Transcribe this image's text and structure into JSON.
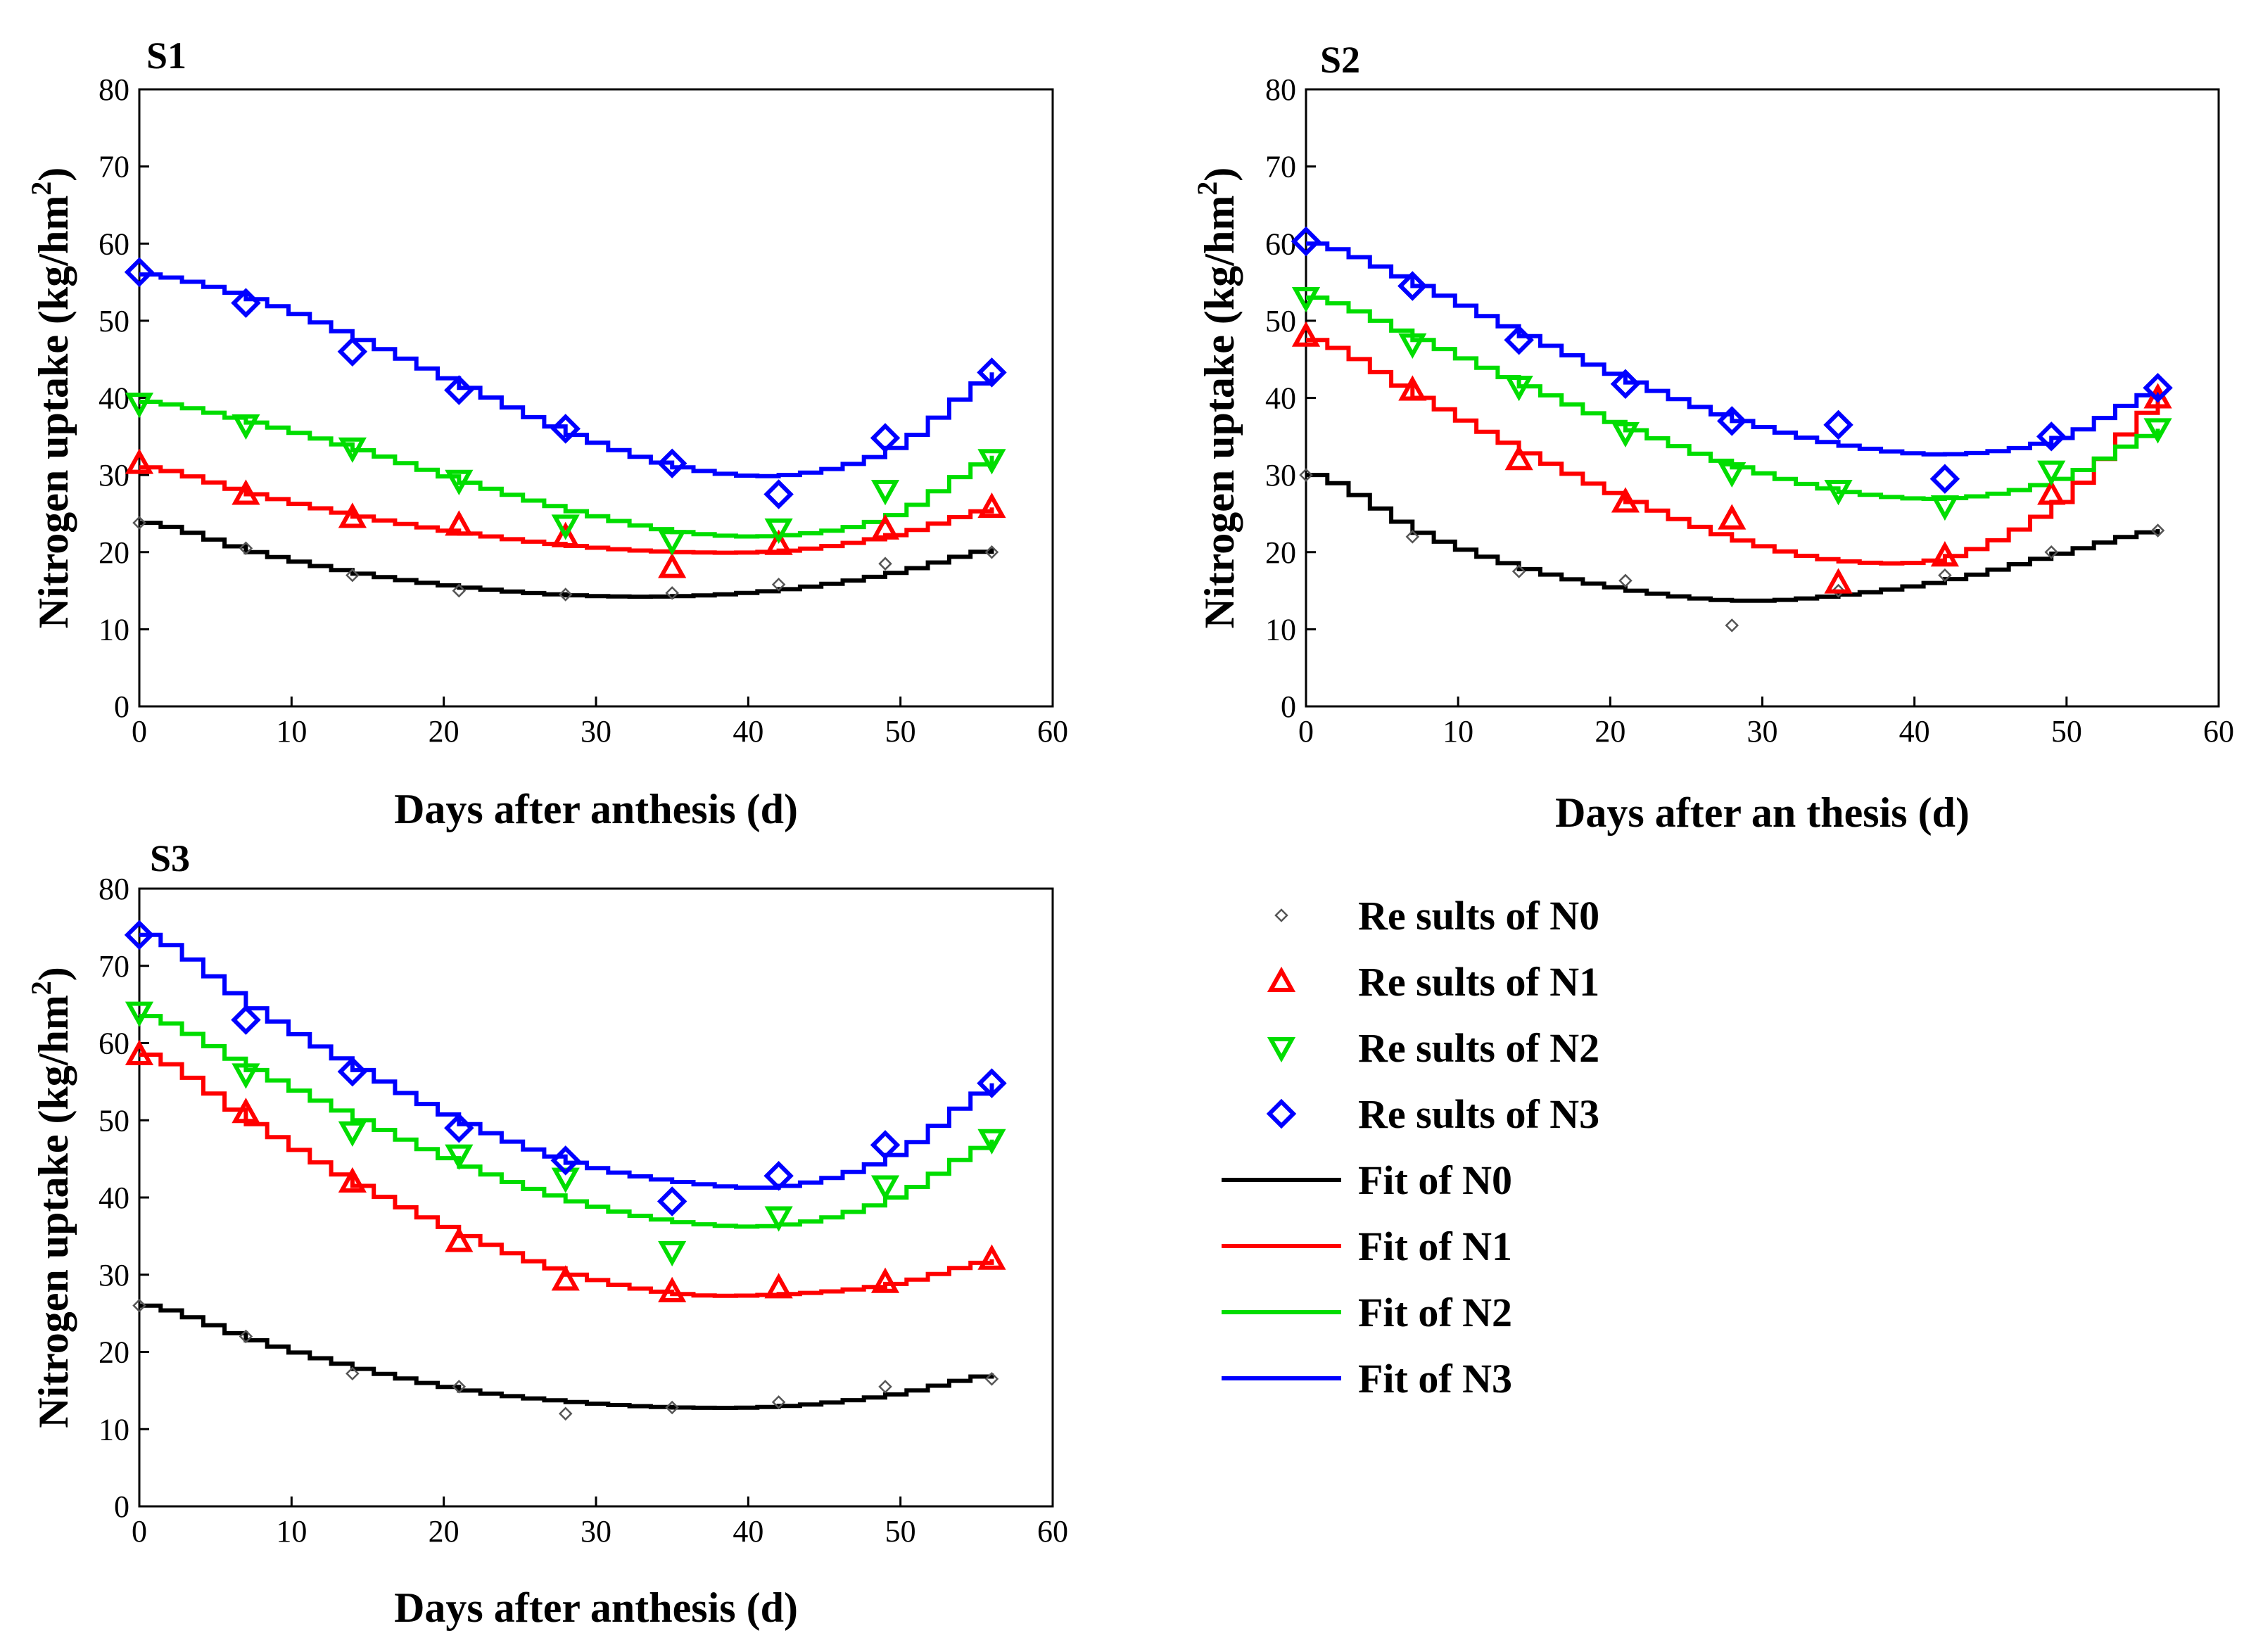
{
  "legend": {
    "entries": [
      {
        "label": "Re sults of  N0",
        "series": "N0",
        "kind": "marker",
        "color": "#555555",
        "marker": "small-diamond"
      },
      {
        "label": "Re sults of  N1",
        "series": "N1",
        "kind": "marker",
        "color": "#ff0000",
        "marker": "triangle-up"
      },
      {
        "label": "Re sults of  N2",
        "series": "N2",
        "kind": "marker",
        "color": "#00dd00",
        "marker": "triangle-down"
      },
      {
        "label": "Re sults of  N3",
        "series": "N3",
        "kind": "marker",
        "color": "#0000ff",
        "marker": "diamond"
      },
      {
        "label": "Fit of  N0",
        "series": "N0",
        "kind": "line",
        "color": "#000000"
      },
      {
        "label": "Fit of  N1",
        "series": "N1",
        "kind": "line",
        "color": "#ff0000"
      },
      {
        "label": "Fit of  N2",
        "series": "N2",
        "kind": "line",
        "color": "#00dd00"
      },
      {
        "label": "Fit of  N3",
        "series": "N3",
        "kind": "line",
        "color": "#0000ff"
      }
    ]
  },
  "chart_data": [
    {
      "type": "scatter",
      "title": "S1",
      "xlabel": "Days after anthesis (d)",
      "ylabel": "Nitrogen uptake  (kg/hm",
      "ylabel_sup": "2",
      "ylabel_close": ")",
      "xlim": [
        0,
        60
      ],
      "ylim": [
        0,
        80
      ],
      "xticks": [
        0,
        10,
        20,
        30,
        40,
        50,
        60
      ],
      "yticks": [
        0,
        10,
        20,
        30,
        40,
        50,
        60,
        70,
        80
      ],
      "x": [
        0,
        7,
        14,
        21,
        28,
        35,
        42,
        49,
        56
      ],
      "series": [
        {
          "name": "N0",
          "color": "#555555",
          "marker": "small-diamond",
          "values": [
            23.8,
            20.5,
            17.0,
            15.0,
            14.5,
            14.7,
            15.8,
            18.5,
            20.0
          ],
          "fit": [
            23.8,
            20.0,
            17.2,
            15.4,
            14.4,
            14.3,
            15.2,
            17.3,
            20.5
          ]
        },
        {
          "name": "N1",
          "color": "#ff0000",
          "marker": "triangle-up",
          "values": [
            31.5,
            27.5,
            24.5,
            23.5,
            22.0,
            18.0,
            21.0,
            23.0,
            25.8
          ],
          "fit": [
            31.0,
            27.5,
            24.6,
            22.4,
            20.8,
            20.0,
            20.2,
            22.2,
            25.8
          ]
        },
        {
          "name": "N2",
          "color": "#00dd00",
          "marker": "triangle-down",
          "values": [
            39.3,
            36.5,
            33.5,
            29.3,
            23.5,
            21.5,
            23.0,
            28.0,
            32.0
          ],
          "fit": [
            39.5,
            36.8,
            33.2,
            29.0,
            25.3,
            22.6,
            22.2,
            24.8,
            32.5
          ]
        },
        {
          "name": "N3",
          "color": "#0000ff",
          "marker": "diamond",
          "values": [
            56.3,
            52.3,
            46.0,
            41.0,
            36.0,
            31.5,
            27.5,
            34.8,
            43.3
          ],
          "fit": [
            56.0,
            52.8,
            47.5,
            41.3,
            35.2,
            31.0,
            30.0,
            33.5,
            43.3
          ]
        }
      ]
    },
    {
      "type": "scatter",
      "title": "S2",
      "xlabel": "Days after an thesis  (d)",
      "ylabel": "Nitrogen uptake  (kg/hm",
      "ylabel_sup": "2",
      "ylabel_close": ")",
      "xlim": [
        0,
        60
      ],
      "ylim": [
        0,
        80
      ],
      "xticks": [
        0,
        10,
        20,
        30,
        40,
        50,
        60
      ],
      "yticks": [
        0,
        10,
        20,
        30,
        40,
        50,
        60,
        70,
        80
      ],
      "x": [
        0,
        7,
        14,
        21,
        28,
        35,
        42,
        49,
        56
      ],
      "series": [
        {
          "name": "N0",
          "color": "#555555",
          "marker": "small-diamond",
          "values": [
            30.0,
            22.0,
            17.5,
            16.3,
            10.5,
            15.0,
            17.0,
            20.0,
            22.8
          ],
          "fit": [
            30.0,
            22.5,
            17.8,
            15.0,
            13.7,
            14.5,
            16.5,
            19.8,
            23.0
          ]
        },
        {
          "name": "N1",
          "color": "#ff0000",
          "marker": "triangle-up",
          "values": [
            48.0,
            41.0,
            32.0,
            26.5,
            24.3,
            16.0,
            19.5,
            27.5,
            40.0
          ],
          "fit": [
            47.5,
            40.0,
            32.8,
            26.5,
            21.5,
            18.8,
            19.5,
            26.5,
            40.0
          ]
        },
        {
          "name": "N2",
          "color": "#00dd00",
          "marker": "triangle-down",
          "values": [
            53.0,
            47.0,
            41.5,
            35.5,
            30.3,
            28.0,
            26.0,
            30.5,
            36.0
          ],
          "fit": [
            53.0,
            47.5,
            41.5,
            35.8,
            31.0,
            27.8,
            27.0,
            29.5,
            36.0
          ]
        },
        {
          "name": "N3",
          "color": "#0000ff",
          "marker": "diamond",
          "values": [
            60.3,
            54.5,
            47.5,
            41.8,
            37.0,
            36.5,
            29.5,
            35.0,
            41.3
          ],
          "fit": [
            60.0,
            54.5,
            48.0,
            42.0,
            37.0,
            33.8,
            32.7,
            34.8,
            41.3
          ]
        }
      ]
    },
    {
      "type": "scatter",
      "title": "S3",
      "xlabel": "Days after anthesis (d)",
      "ylabel": "Nitrogen uptake  (kg/hm",
      "ylabel_sup": "2",
      "ylabel_close": ")",
      "xlim": [
        0,
        60
      ],
      "ylim": [
        0,
        80
      ],
      "xticks": [
        0,
        10,
        20,
        30,
        40,
        50,
        60
      ],
      "yticks": [
        0,
        10,
        20,
        30,
        40,
        50,
        60,
        70,
        80
      ],
      "x": [
        0,
        7,
        14,
        21,
        28,
        35,
        42,
        49,
        56
      ],
      "series": [
        {
          "name": "N0",
          "color": "#555555",
          "marker": "small-diamond",
          "values": [
            26.0,
            22.0,
            17.2,
            15.5,
            12.0,
            12.8,
            13.5,
            15.5,
            16.5
          ],
          "fit": [
            26.0,
            21.5,
            17.8,
            15.0,
            13.5,
            12.8,
            13.0,
            14.5,
            17.2
          ]
        },
        {
          "name": "N1",
          "color": "#ff0000",
          "marker": "triangle-up",
          "values": [
            58.5,
            51.0,
            42.0,
            34.3,
            29.3,
            27.8,
            28.3,
            29.0,
            32.0
          ],
          "fit": [
            58.5,
            49.5,
            41.5,
            35.0,
            30.0,
            27.5,
            27.5,
            28.8,
            32.0
          ]
        },
        {
          "name": "N2",
          "color": "#00dd00",
          "marker": "triangle-down",
          "values": [
            64.0,
            56.0,
            48.5,
            45.5,
            42.5,
            33.0,
            37.5,
            41.5,
            47.5
          ],
          "fit": [
            63.5,
            56.5,
            50.0,
            44.0,
            39.5,
            36.8,
            36.5,
            40.0,
            47.5
          ]
        },
        {
          "name": "N3",
          "color": "#0000ff",
          "marker": "diamond",
          "values": [
            74.0,
            63.0,
            56.3,
            49.0,
            44.8,
            39.5,
            42.8,
            46.8,
            54.8
          ],
          "fit": [
            74.0,
            64.5,
            56.5,
            49.5,
            44.5,
            42.0,
            41.5,
            45.5,
            54.8
          ]
        }
      ]
    }
  ]
}
